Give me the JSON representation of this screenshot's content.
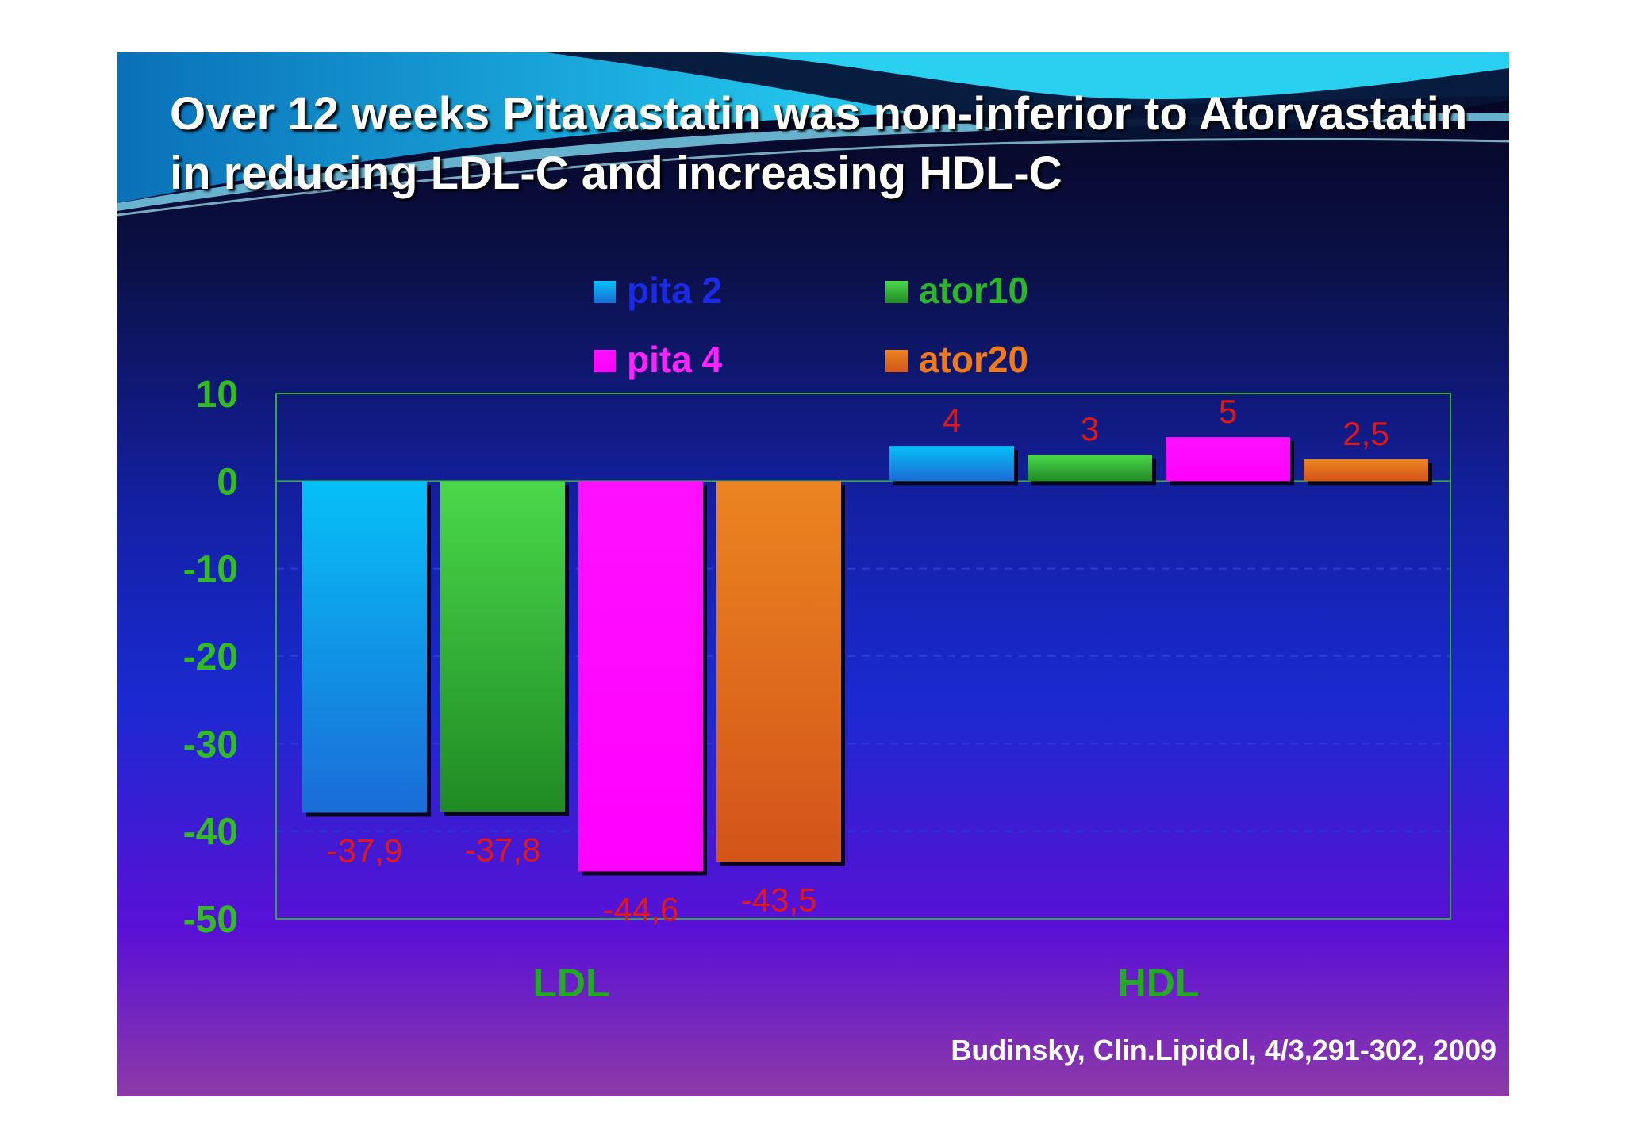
{
  "slide": {
    "title": "Over 12 weeks Pitavastatin was non-inferior to Atorvastatin in reducing LDL-C and increasing HDL-C",
    "citation": "Budinsky, Clin.Lipidol, 4/3,291-302, 2009"
  },
  "chart_data": {
    "type": "bar",
    "title": "",
    "xlabel": "",
    "ylabel": "",
    "categories": [
      "LDL",
      "HDL"
    ],
    "ylim": [
      -50,
      10
    ],
    "yticks": [
      10,
      0,
      -10,
      -20,
      -30,
      -40,
      -50
    ],
    "grid": true,
    "legend_position": "top",
    "series": [
      {
        "name": "pita 2",
        "values": [
          -37.9,
          4
        ],
        "labels": [
          "-37,9",
          "4"
        ],
        "color": "#1aa6ec",
        "legend_color": "#1a2ae8"
      },
      {
        "name": "ator10",
        "values": [
          -37.8,
          3
        ],
        "labels": [
          "-37,8",
          "3"
        ],
        "color": "#34b834",
        "legend_color": "#2ab52a"
      },
      {
        "name": "pita 4",
        "values": [
          -44.6,
          5
        ],
        "labels": [
          "-44,6",
          "5"
        ],
        "color": "#ff00ff",
        "legend_color": "#ff22ff"
      },
      {
        "name": "ator20",
        "values": [
          -43.5,
          2.5
        ],
        "labels": [
          "-43,5",
          "2,5"
        ],
        "color": "#e5701a",
        "legend_color": "#f07a18"
      }
    ],
    "colors": {
      "tick_label": "#33bb22",
      "category_label": "#22aa22",
      "value_label": "#e01818",
      "frame": "#33aa33"
    }
  }
}
